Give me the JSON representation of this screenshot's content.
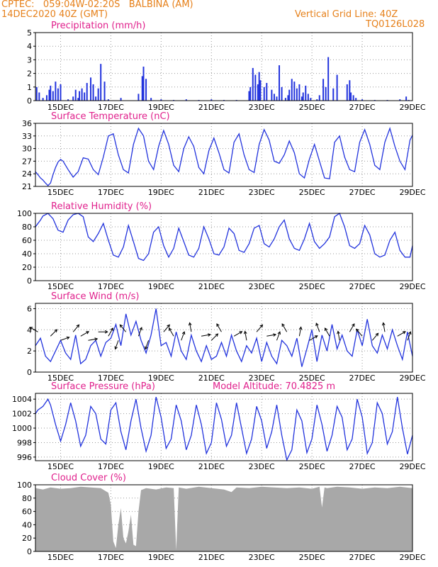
{
  "header": {
    "line1": "CPTEC:   059:04W-02:20S   BALBINA (AM)",
    "line2": "14DEC2020 40Z (GMT)",
    "grid_note": "Vertical Grid Line: 40Z",
    "code": "TQ0126L028"
  },
  "colors": {
    "header": "#e6801a",
    "title": "#e0208c",
    "series": "#2233dd",
    "cloud": "#a8a8a8",
    "grid": "#999999"
  },
  "x_axis": {
    "range_days": [
      14.0,
      29.0
    ],
    "ticks": [
      {
        "day": 15,
        "label": "15DEC"
      },
      {
        "day": 17,
        "label": "17DEC"
      },
      {
        "day": 19,
        "label": "19DEC"
      },
      {
        "day": 21,
        "label": "21DEC"
      },
      {
        "day": 23,
        "label": "23DEC"
      },
      {
        "day": 25,
        "label": "25DEC"
      },
      {
        "day": 27,
        "label": "27DEC"
      },
      {
        "day": 29,
        "label": "29DEC"
      }
    ]
  },
  "chart_data": [
    {
      "type": "bar",
      "title": "Precipitation (mm/h)",
      "ylim": [
        0,
        5
      ],
      "yticks": [
        0,
        1,
        2,
        3,
        4,
        5
      ],
      "x": [
        14.05,
        14.15,
        14.3,
        14.45,
        14.55,
        14.6,
        14.7,
        14.8,
        14.9,
        15.0,
        15.3,
        15.5,
        15.6,
        15.7,
        15.75,
        15.85,
        15.95,
        16.05,
        16.2,
        16.3,
        16.4,
        16.5,
        16.6,
        16.75,
        16.9,
        17.4,
        18.1,
        18.25,
        18.3,
        18.4,
        18.6,
        19.0,
        19.5,
        20.0,
        20.5,
        21.0,
        21.5,
        22.0,
        22.5,
        22.55,
        22.65,
        22.75,
        22.85,
        22.9,
        22.95,
        23.1,
        23.2,
        23.4,
        23.5,
        23.6,
        23.7,
        23.8,
        23.95,
        24.05,
        24.1,
        24.2,
        24.3,
        24.4,
        24.5,
        24.6,
        24.65,
        24.75,
        24.85,
        24.95,
        25.2,
        25.3,
        25.45,
        25.55,
        25.65,
        25.85,
        26.0,
        26.4,
        26.5,
        26.55,
        26.65,
        26.75,
        27.0,
        27.5,
        28.0,
        28.5,
        28.75,
        28.85
      ],
      "values": [
        1.0,
        0.6,
        0.2,
        0.4,
        0.8,
        1.1,
        0.7,
        1.4,
        0.9,
        1.2,
        0.1,
        0.3,
        0.8,
        0.2,
        0.7,
        0.9,
        0.6,
        1.3,
        1.7,
        1.2,
        0.3,
        0.9,
        2.7,
        1.4,
        0.1,
        0.2,
        0.5,
        1.8,
        2.5,
        1.6,
        0.2,
        0.1,
        0.05,
        0.1,
        0.05,
        0.1,
        0.05,
        0.05,
        0.7,
        1.0,
        2.4,
        1.9,
        1.2,
        2.1,
        1.5,
        1.0,
        1.3,
        0.8,
        0.5,
        0.3,
        2.6,
        1.0,
        0.2,
        0.4,
        0.8,
        1.6,
        1.4,
        0.9,
        1.2,
        0.3,
        0.6,
        1.1,
        0.5,
        0.2,
        0.1,
        0.4,
        1.6,
        1.0,
        3.2,
        0.9,
        1.9,
        1.2,
        1.5,
        0.6,
        0.4,
        0.2,
        0.1,
        0.05,
        0.05,
        0.1,
        0.3,
        0.05
      ]
    },
    {
      "type": "line",
      "title": "Surface Temperature (nC)",
      "ylim": [
        21,
        36
      ],
      "yticks": [
        21,
        24,
        27,
        30,
        33,
        36
      ],
      "x": [
        14.0,
        14.1,
        14.2,
        14.3,
        14.4,
        14.5,
        14.6,
        14.7,
        14.8,
        14.9,
        15.0,
        15.1,
        15.3,
        15.5,
        15.7,
        15.9,
        16.1,
        16.3,
        16.5,
        16.7,
        16.9,
        17.1,
        17.3,
        17.5,
        17.7,
        17.9,
        18.1,
        18.3,
        18.5,
        18.7,
        18.9,
        19.1,
        19.3,
        19.5,
        19.7,
        19.9,
        20.1,
        20.3,
        20.5,
        20.7,
        20.9,
        21.1,
        21.3,
        21.5,
        21.7,
        21.9,
        22.1,
        22.3,
        22.5,
        22.7,
        22.9,
        23.1,
        23.3,
        23.5,
        23.7,
        23.9,
        24.1,
        24.3,
        24.5,
        24.7,
        24.9,
        25.1,
        25.3,
        25.5,
        25.7,
        25.9,
        26.1,
        26.3,
        26.5,
        26.7,
        26.9,
        27.1,
        27.3,
        27.5,
        27.7,
        27.9,
        28.1,
        28.3,
        28.5,
        28.7,
        28.9,
        29.0
      ],
      "values": [
        24.5,
        23.8,
        23.0,
        22.5,
        21.8,
        21.2,
        21.8,
        23.8,
        25.5,
        26.8,
        27.4,
        27.0,
        25.0,
        23.2,
        24.5,
        27.8,
        27.5,
        25.0,
        23.8,
        28.0,
        33.0,
        33.5,
        28.5,
        25.0,
        24.2,
        31.0,
        34.8,
        33.0,
        27.0,
        25.0,
        30.5,
        34.3,
        31.0,
        26.0,
        24.5,
        30.0,
        32.8,
        30.5,
        25.5,
        24.0,
        29.5,
        32.5,
        29.0,
        25.0,
        24.2,
        31.5,
        33.5,
        28.5,
        25.0,
        24.3,
        31.0,
        34.5,
        32.0,
        27.0,
        26.5,
        28.5,
        31.8,
        29.0,
        24.0,
        23.0,
        27.5,
        31.0,
        27.0,
        23.0,
        22.8,
        31.5,
        33.0,
        28.0,
        25.0,
        24.5,
        31.5,
        34.5,
        31.0,
        26.0,
        25.0,
        31.5,
        34.8,
        30.5,
        27.0,
        25.0,
        32.0,
        33.2
      ]
    },
    {
      "type": "line",
      "title": "Relative Humidity (%)",
      "ylim": [
        0,
        100
      ],
      "yticks": [
        0,
        20,
        40,
        60,
        80,
        100
      ],
      "x": [
        14.0,
        14.1,
        14.2,
        14.3,
        14.5,
        14.7,
        14.9,
        15.1,
        15.3,
        15.5,
        15.7,
        15.9,
        16.1,
        16.3,
        16.5,
        16.7,
        16.9,
        17.1,
        17.3,
        17.5,
        17.7,
        17.9,
        18.1,
        18.3,
        18.5,
        18.7,
        18.9,
        19.1,
        19.3,
        19.5,
        19.7,
        19.9,
        20.1,
        20.3,
        20.5,
        20.7,
        20.9,
        21.1,
        21.3,
        21.5,
        21.7,
        21.9,
        22.1,
        22.3,
        22.5,
        22.7,
        22.9,
        23.1,
        23.3,
        23.5,
        23.7,
        23.9,
        24.1,
        24.3,
        24.5,
        24.7,
        24.9,
        25.1,
        25.3,
        25.5,
        25.7,
        25.9,
        26.1,
        26.3,
        26.5,
        26.7,
        26.9,
        27.1,
        27.3,
        27.5,
        27.7,
        27.9,
        28.1,
        28.3,
        28.5,
        28.7,
        28.9,
        29.0
      ],
      "values": [
        80,
        85,
        90,
        96,
        100,
        92,
        75,
        72,
        90,
        98,
        100,
        95,
        65,
        58,
        70,
        85,
        60,
        38,
        35,
        50,
        82,
        58,
        33,
        30,
        40,
        72,
        80,
        52,
        35,
        48,
        78,
        58,
        38,
        35,
        48,
        80,
        62,
        40,
        38,
        50,
        78,
        70,
        45,
        42,
        55,
        78,
        82,
        55,
        50,
        62,
        80,
        90,
        62,
        48,
        45,
        62,
        85,
        58,
        48,
        55,
        65,
        95,
        100,
        80,
        52,
        48,
        55,
        82,
        68,
        40,
        35,
        38,
        60,
        72,
        45,
        35,
        35,
        52
      ],
      "ylabel": ""
    },
    {
      "type": "line",
      "title": "Surface Wind (m/s)",
      "ylim": [
        0,
        6.5
      ],
      "yticks": [
        0,
        2,
        4,
        6
      ],
      "x": [
        14.0,
        14.2,
        14.4,
        14.6,
        14.8,
        15.0,
        15.2,
        15.4,
        15.6,
        15.8,
        16.0,
        16.2,
        16.4,
        16.6,
        16.8,
        17.0,
        17.2,
        17.4,
        17.6,
        17.8,
        18.0,
        18.2,
        18.4,
        18.6,
        18.8,
        19.0,
        19.2,
        19.4,
        19.6,
        19.8,
        20.0,
        20.2,
        20.4,
        20.6,
        20.8,
        21.0,
        21.2,
        21.4,
        21.6,
        21.8,
        22.0,
        22.2,
        22.4,
        22.6,
        22.8,
        23.0,
        23.2,
        23.4,
        23.6,
        23.8,
        24.0,
        24.2,
        24.4,
        24.6,
        24.8,
        25.0,
        25.2,
        25.4,
        25.6,
        25.8,
        26.0,
        26.2,
        26.4,
        26.6,
        26.8,
        27.0,
        27.2,
        27.4,
        27.6,
        27.8,
        28.0,
        28.2,
        28.4,
        28.6,
        28.8,
        29.0
      ],
      "values": [
        2.5,
        3.2,
        1.5,
        1.0,
        2.0,
        3.0,
        1.8,
        1.2,
        3.5,
        0.8,
        1.2,
        2.5,
        3.0,
        1.5,
        2.8,
        3.2,
        4.5,
        2.5,
        5.5,
        3.5,
        4.8,
        3.0,
        1.8,
        3.5,
        6.0,
        2.5,
        2.8,
        1.5,
        3.8,
        2.0,
        1.2,
        3.5,
        2.0,
        1.0,
        2.5,
        1.2,
        1.5,
        2.8,
        1.5,
        3.5,
        2.0,
        1.0,
        2.5,
        1.8,
        3.2,
        1.0,
        2.8,
        1.5,
        0.8,
        3.0,
        2.5,
        1.5,
        3.2,
        0.5,
        2.2,
        4.0,
        1.0,
        3.5,
        2.0,
        4.5,
        2.2,
        3.5,
        2.0,
        1.5,
        4.0,
        2.5,
        5.0,
        2.5,
        1.8,
        3.5,
        2.2,
        4.0,
        2.5,
        1.2,
        3.8,
        1.5
      ],
      "arrows": [
        {
          "day": 14.1,
          "dir_deg": 300
        },
        {
          "day": 14.6,
          "dir_deg": 45
        },
        {
          "day": 15.0,
          "dir_deg": 70
        },
        {
          "day": 15.5,
          "dir_deg": 40
        },
        {
          "day": 15.8,
          "dir_deg": 60
        },
        {
          "day": 16.1,
          "dir_deg": 80
        },
        {
          "day": 16.5,
          "dir_deg": 90
        },
        {
          "day": 16.9,
          "dir_deg": 30
        },
        {
          "day": 17.3,
          "dir_deg": 200
        },
        {
          "day": 17.6,
          "dir_deg": 320
        },
        {
          "day": 18.1,
          "dir_deg": 20
        },
        {
          "day": 18.5,
          "dir_deg": 200
        },
        {
          "day": 19.1,
          "dir_deg": 40
        },
        {
          "day": 19.5,
          "dir_deg": 330
        },
        {
          "day": 19.8,
          "dir_deg": 20
        },
        {
          "day": 20.2,
          "dir_deg": 350
        },
        {
          "day": 20.6,
          "dir_deg": 80
        },
        {
          "day": 21.0,
          "dir_deg": 45
        },
        {
          "day": 21.4,
          "dir_deg": 330
        },
        {
          "day": 21.9,
          "dir_deg": 60
        },
        {
          "day": 22.4,
          "dir_deg": 350
        },
        {
          "day": 22.8,
          "dir_deg": 40
        },
        {
          "day": 23.2,
          "dir_deg": 80
        },
        {
          "day": 23.6,
          "dir_deg": 20
        },
        {
          "day": 24.0,
          "dir_deg": 330
        },
        {
          "day": 24.5,
          "dir_deg": 10
        },
        {
          "day": 24.9,
          "dir_deg": 60
        },
        {
          "day": 25.3,
          "dir_deg": 340
        },
        {
          "day": 25.7,
          "dir_deg": 330
        },
        {
          "day": 26.1,
          "dir_deg": 350
        },
        {
          "day": 26.5,
          "dir_deg": 30
        },
        {
          "day": 27.0,
          "dir_deg": 320
        },
        {
          "day": 27.4,
          "dir_deg": 40
        },
        {
          "day": 27.9,
          "dir_deg": 350
        },
        {
          "day": 28.4,
          "dir_deg": 60
        },
        {
          "day": 28.8,
          "dir_deg": 20
        }
      ]
    },
    {
      "type": "line",
      "title": "Surface Pressure (hPa)",
      "subtitle": "Model Altitude: 70.4825 m",
      "ylim": [
        995.5,
        1004.8
      ],
      "yticks": [
        996,
        998,
        1000,
        1002,
        1004
      ],
      "x": [
        14.0,
        14.1,
        14.3,
        14.5,
        14.6,
        14.8,
        15.0,
        15.2,
        15.4,
        15.6,
        15.8,
        16.0,
        16.2,
        16.4,
        16.6,
        16.8,
        17.0,
        17.2,
        17.4,
        17.6,
        17.8,
        18.0,
        18.2,
        18.4,
        18.6,
        18.8,
        19.0,
        19.2,
        19.4,
        19.6,
        19.8,
        20.0,
        20.2,
        20.4,
        20.6,
        20.8,
        21.0,
        21.2,
        21.4,
        21.6,
        21.8,
        22.0,
        22.2,
        22.4,
        22.6,
        22.8,
        23.0,
        23.2,
        23.4,
        23.6,
        23.8,
        24.0,
        24.2,
        24.4,
        24.6,
        24.8,
        25.0,
        25.2,
        25.4,
        25.6,
        25.8,
        26.0,
        26.2,
        26.4,
        26.6,
        26.8,
        27.0,
        27.2,
        27.4,
        27.6,
        27.8,
        28.0,
        28.2,
        28.4,
        28.6,
        28.8,
        29.0
      ],
      "values": [
        1002.0,
        1002.5,
        1003.0,
        1004.0,
        1003.2,
        1000.5,
        998.2,
        1000.5,
        1003.5,
        1001.0,
        997.5,
        999.0,
        1003.0,
        1002.0,
        998.5,
        997.8,
        1002.5,
        1003.5,
        999.5,
        997.0,
        1001.0,
        1004.0,
        1000.0,
        996.8,
        999.0,
        1004.3,
        1001.5,
        997.2,
        998.5,
        1003.2,
        1001.0,
        997.0,
        999.0,
        1003.2,
        1000.5,
        996.5,
        998.0,
        1003.5,
        1001.2,
        997.5,
        999.0,
        1003.5,
        1000.0,
        996.5,
        998.5,
        1003.0,
        1001.0,
        997.2,
        999.5,
        1003.2,
        999.0,
        995.6,
        997.0,
        1002.5,
        1001.0,
        996.6,
        998.5,
        1003.2,
        1000.5,
        996.8,
        999.0,
        1003.0,
        1001.5,
        997.0,
        998.5,
        1004.0,
        1001.5,
        996.5,
        998.0,
        1003.5,
        1002.0,
        997.8,
        999.5,
        1004.3,
        1000.0,
        996.4,
        999.0
      ]
    },
    {
      "type": "area",
      "title": "Cloud Cover (%)",
      "ylim": [
        0,
        100
      ],
      "yticks": [
        0,
        20,
        40,
        60,
        80,
        100
      ],
      "x": [
        14.0,
        14.3,
        14.6,
        15.0,
        15.4,
        15.8,
        16.2,
        16.6,
        16.9,
        17.0,
        17.1,
        17.2,
        17.3,
        17.4,
        17.5,
        17.6,
        17.7,
        17.8,
        17.9,
        18.0,
        18.1,
        18.2,
        18.4,
        18.8,
        19.2,
        19.5,
        19.6,
        19.7,
        20.0,
        20.5,
        21.0,
        21.5,
        21.8,
        22.0,
        22.5,
        23.0,
        23.5,
        24.0,
        24.5,
        25.0,
        25.3,
        25.4,
        25.5,
        25.6,
        26.0,
        26.5,
        27.0,
        27.5,
        28.0,
        28.5,
        29.0
      ],
      "values": [
        95,
        93,
        96,
        94,
        95,
        97,
        96,
        95,
        88,
        70,
        15,
        5,
        40,
        65,
        20,
        12,
        30,
        55,
        10,
        8,
        60,
        92,
        95,
        93,
        96,
        95,
        2,
        96,
        94,
        97,
        95,
        93,
        89,
        96,
        95,
        97,
        96,
        95,
        96,
        94,
        97,
        66,
        96,
        95,
        97,
        96,
        94,
        96,
        95,
        97,
        95
      ]
    }
  ]
}
